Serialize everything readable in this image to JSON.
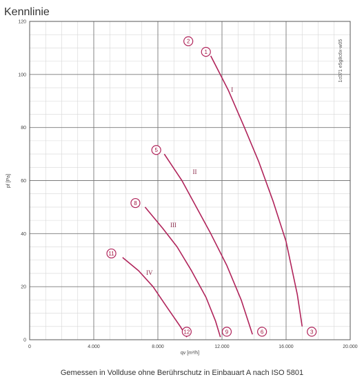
{
  "chart_data": {
    "type": "line",
    "title": "Kennlinie",
    "xlabel": "qv [m³/h]",
    "ylabel": "pf [Pa]",
    "xlim": [
      0,
      20000
    ],
    "ylim": [
      0,
      120
    ],
    "x_ticks": [
      0,
      4000,
      8000,
      12000,
      16000,
      20000
    ],
    "x_tick_labels": [
      "0",
      "4.000",
      "8.000",
      "12.000",
      "16.000",
      "20.000"
    ],
    "y_ticks": [
      0,
      20,
      40,
      60,
      80,
      100,
      120
    ],
    "y_tick_labels": [
      "0",
      "20",
      "40",
      "60",
      "80",
      "100",
      "120"
    ],
    "grid": true,
    "series": [
      {
        "name": "I",
        "color": "#b0235a",
        "points": [
          [
            11300,
            107
          ],
          [
            12400,
            94
          ],
          [
            13400,
            80
          ],
          [
            14300,
            67
          ],
          [
            15200,
            52
          ],
          [
            16000,
            37
          ],
          [
            16700,
            17
          ],
          [
            17000,
            5
          ]
        ]
      },
      {
        "name": "II",
        "color": "#b0235a",
        "points": [
          [
            8400,
            70
          ],
          [
            9500,
            60
          ],
          [
            10400,
            50
          ],
          [
            11300,
            40
          ],
          [
            12300,
            28
          ],
          [
            13200,
            15
          ],
          [
            13900,
            2
          ]
        ]
      },
      {
        "name": "III",
        "color": "#b0235a",
        "points": [
          [
            7200,
            50
          ],
          [
            8300,
            42
          ],
          [
            9200,
            35
          ],
          [
            10100,
            26
          ],
          [
            11000,
            16
          ],
          [
            11600,
            7
          ],
          [
            11900,
            1
          ]
        ]
      },
      {
        "name": "IV",
        "color": "#b0235a",
        "points": [
          [
            5800,
            31
          ],
          [
            6800,
            26
          ],
          [
            7700,
            20
          ],
          [
            8600,
            12
          ],
          [
            9400,
            5
          ],
          [
            9800,
            1
          ]
        ]
      }
    ],
    "curve_labels": [
      {
        "text": "I",
        "x": 12400,
        "y": 94
      },
      {
        "text": "II",
        "x": 10000,
        "y": 63
      },
      {
        "text": "III",
        "x": 8600,
        "y": 43
      },
      {
        "text": "IV",
        "x": 7100,
        "y": 25
      }
    ],
    "operating_points": [
      {
        "label": "2",
        "x": 9900,
        "y": 112
      },
      {
        "label": "1",
        "x": 11000,
        "y": 108
      },
      {
        "label": "5",
        "x": 7900,
        "y": 71
      },
      {
        "label": "8",
        "x": 6600,
        "y": 51
      },
      {
        "label": "11",
        "x": 5100,
        "y": 32
      },
      {
        "label": "12",
        "x": 9800,
        "y": 2.5
      },
      {
        "label": "9",
        "x": 12300,
        "y": 2.5
      },
      {
        "label": "6",
        "x": 14500,
        "y": 2.5
      },
      {
        "label": "3",
        "x": 17600,
        "y": 2.5
      }
    ],
    "side_code": "1c071 e5g8c6x-w05",
    "footer": "Gemessen in Vollduse ohne Berührschutz in Einbauart A nach ISO 5801"
  }
}
